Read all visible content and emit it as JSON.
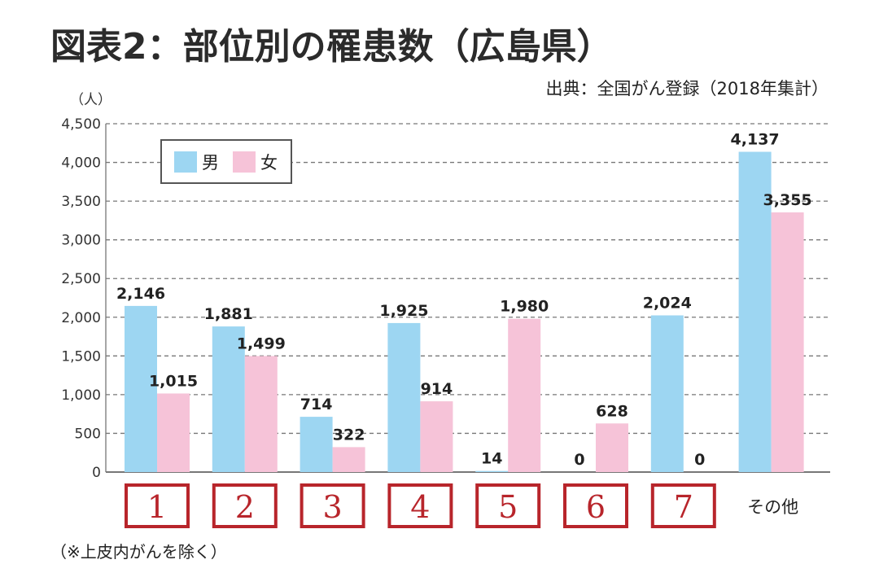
{
  "chart_data": {
    "type": "bar",
    "title": "図表2：部位別の罹患数（広島県）",
    "source": "出典：全国がん登録（2018年集計）",
    "ylabel": "（人）",
    "footnote": "（※上皮内がんを除く）",
    "ylim": [
      0,
      4500
    ],
    "yticks": [
      "0",
      "500",
      "1,000",
      "1,500",
      "2,000",
      "2,500",
      "3,000",
      "3,500",
      "4,000",
      "4,500"
    ],
    "grid": true,
    "legend_position": "top-left",
    "categories": [
      "1",
      "2",
      "3",
      "4",
      "5",
      "6",
      "7",
      "その他"
    ],
    "series": [
      {
        "name": "男",
        "color": "#9dd6f2",
        "values": [
          2146,
          1881,
          714,
          1925,
          14,
          0,
          2024,
          4137
        ],
        "labels": [
          "2,146",
          "1,881",
          "714",
          "1,925",
          "14",
          "0",
          "2,024",
          "4,137"
        ]
      },
      {
        "name": "女",
        "color": "#f6c3d8",
        "values": [
          1015,
          1499,
          322,
          914,
          1980,
          628,
          0,
          3355
        ],
        "labels": [
          "1,015",
          "1,499",
          "322",
          "914",
          "1,980",
          "628",
          "0",
          "3,355"
        ]
      }
    ],
    "category_box_color": "#b8252b"
  }
}
